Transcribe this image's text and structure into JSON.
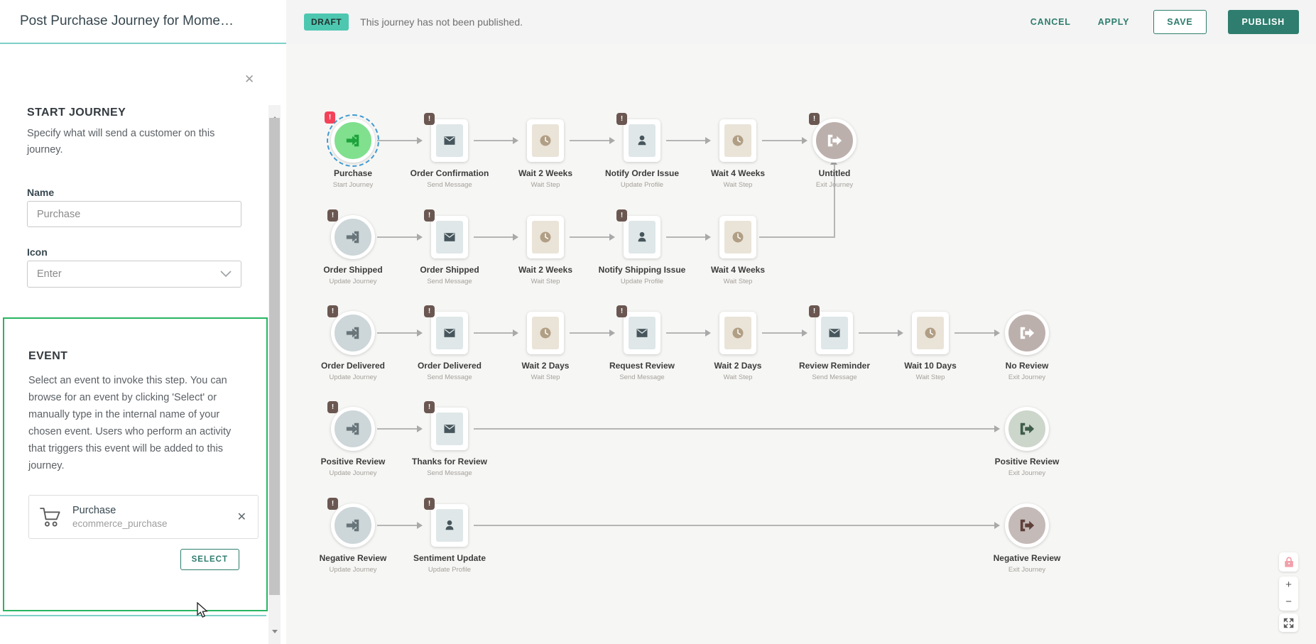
{
  "header": {
    "title": "Post Purchase Journey for Mome…",
    "status_badge": "DRAFT",
    "status_message": "This journey has not been published.",
    "actions": {
      "cancel": "CANCEL",
      "apply": "APPLY",
      "save": "SAVE",
      "publish": "PUBLISH"
    }
  },
  "sidebar": {
    "close_icon": "✕",
    "start_journey": {
      "heading": "START JOURNEY",
      "description": "Specify what will send a customer on this journey.",
      "name_label": "Name",
      "name_value": "Purchase",
      "icon_label": "Icon",
      "icon_value": "Enter"
    },
    "event": {
      "heading": "EVENT",
      "description": "Select an event to invoke this step. You can browse for an event by clicking 'Select' or manually type in the internal name of your chosen event. Users who perform an activity that triggers this event will be added to this journey.",
      "selected_event": {
        "name": "Purchase",
        "internal_name": "ecommerce_purchase",
        "icon": "shopping-cart",
        "remove_icon": "✕"
      },
      "select_button": "SELECT"
    }
  },
  "controls": {
    "lock_icon": "lock",
    "zoom_in": "+",
    "zoom_out": "−",
    "fullscreen_icon": "expand-arrows"
  },
  "colors": {
    "accent_teal": "#2e7d6e",
    "draft_badge": "#4ec7b1",
    "highlight_green": "#27b561",
    "start_node": "#80e08e",
    "start_icon": "#1ea33c",
    "selection_dash": "#3f9ad2",
    "journey_node": "#cdd6d8",
    "message_inner": "#dfe7e8",
    "wait_inner": "#eae3d8",
    "profile_inner": "#dfe7e8",
    "step_icon": "#47565c",
    "wait_icon": "#b19f85",
    "exit_neutral": "#bcb0ad",
    "exit_positive": "#ccd6cb",
    "exit_negative": "#c4bab7",
    "badge_dark": "#6b5751",
    "badge_red": "#f44259",
    "connector": "#b5b5b5"
  },
  "flow": {
    "rows": [
      {
        "nodes": [
          {
            "label": "Purchase",
            "sublabel": "Start Journey",
            "type": "start",
            "badge": "red",
            "selected": true,
            "col": 1
          },
          {
            "label": "Order Confirmation",
            "sublabel": "Send Message",
            "type": "message",
            "badge": "dark",
            "col": 2
          },
          {
            "label": "Wait 2 Weeks",
            "sublabel": "Wait Step",
            "type": "wait",
            "col": 3
          },
          {
            "label": "Notify Order Issue",
            "sublabel": "Update Profile",
            "type": "profile",
            "badge": "dark",
            "col": 4
          },
          {
            "label": "Wait 4 Weeks",
            "sublabel": "Wait Step",
            "type": "wait",
            "col": 5
          },
          {
            "label": "Untitled",
            "sublabel": "Exit Journey",
            "type": "exit-neutral",
            "badge": "dark",
            "col": 6
          }
        ]
      },
      {
        "nodes": [
          {
            "label": "Order Shipped",
            "sublabel": "Update Journey",
            "type": "journey",
            "badge": "dark",
            "col": 1
          },
          {
            "label": "Order Shipped",
            "sublabel": "Send Message",
            "type": "message",
            "badge": "dark",
            "col": 2
          },
          {
            "label": "Wait 2 Weeks",
            "sublabel": "Wait Step",
            "type": "wait",
            "col": 3
          },
          {
            "label": "Notify Shipping Issue",
            "sublabel": "Update Profile",
            "type": "profile",
            "badge": "dark",
            "col": 4
          },
          {
            "label": "Wait 4 Weeks",
            "sublabel": "Wait Step",
            "type": "wait",
            "col": 5
          }
        ]
      },
      {
        "nodes": [
          {
            "label": "Order Delivered",
            "sublabel": "Update Journey",
            "type": "journey",
            "badge": "dark",
            "col": 1
          },
          {
            "label": "Order Delivered",
            "sublabel": "Send Message",
            "type": "message",
            "badge": "dark",
            "col": 2
          },
          {
            "label": "Wait 2 Days",
            "sublabel": "Wait Step",
            "type": "wait",
            "col": 3
          },
          {
            "label": "Request Review",
            "sublabel": "Send Message",
            "type": "message",
            "badge": "dark",
            "col": 4
          },
          {
            "label": "Wait 2 Days",
            "sublabel": "Wait Step",
            "type": "wait",
            "col": 5
          },
          {
            "label": "Review Reminder",
            "sublabel": "Send Message",
            "type": "message",
            "badge": "dark",
            "col": 6
          },
          {
            "label": "Wait 10 Days",
            "sublabel": "Wait Step",
            "type": "wait",
            "col": 7
          },
          {
            "label": "No Review",
            "sublabel": "Exit Journey",
            "type": "exit-neutral",
            "col": 8
          }
        ]
      },
      {
        "nodes": [
          {
            "label": "Positive Review",
            "sublabel": "Update Journey",
            "type": "journey",
            "badge": "dark",
            "col": 1
          },
          {
            "label": "Thanks for Review",
            "sublabel": "Send Message",
            "type": "message",
            "badge": "dark",
            "col": 2
          },
          {
            "label": "Positive Review",
            "sublabel": "Exit Journey",
            "type": "exit-positive",
            "col": 8
          }
        ]
      },
      {
        "nodes": [
          {
            "label": "Negative Review",
            "sublabel": "Update Journey",
            "type": "journey",
            "badge": "dark",
            "col": 1
          },
          {
            "label": "Sentiment Update",
            "sublabel": "Update Profile",
            "type": "profile",
            "badge": "dark",
            "col": 2
          },
          {
            "label": "Negative Review",
            "sublabel": "Exit Journey",
            "type": "exit-negative",
            "col": 8
          }
        ]
      }
    ],
    "connections": [
      {
        "row": 1,
        "from": 1,
        "to": 2
      },
      {
        "row": 1,
        "from": 2,
        "to": 3
      },
      {
        "row": 1,
        "from": 3,
        "to": 4
      },
      {
        "row": 1,
        "from": 4,
        "to": 5
      },
      {
        "row": 1,
        "from": 5,
        "to": 6
      },
      {
        "row": 2,
        "from": 1,
        "to": 2
      },
      {
        "row": 2,
        "from": 2,
        "to": 3
      },
      {
        "row": 2,
        "from": 3,
        "to": 4
      },
      {
        "row": 2,
        "from": 4,
        "to": 5
      },
      {
        "elbow": true,
        "fromRow": 2,
        "fromCol": 5,
        "toRow": 1,
        "toCol": 6
      },
      {
        "row": 3,
        "from": 1,
        "to": 2
      },
      {
        "row": 3,
        "from": 2,
        "to": 3
      },
      {
        "row": 3,
        "from": 3,
        "to": 4
      },
      {
        "row": 3,
        "from": 4,
        "to": 5
      },
      {
        "row": 3,
        "from": 5,
        "to": 6
      },
      {
        "row": 3,
        "from": 6,
        "to": 7
      },
      {
        "row": 3,
        "from": 7,
        "to": 8
      },
      {
        "row": 4,
        "from": 1,
        "to": 2
      },
      {
        "row": 4,
        "from": 2,
        "to": 8
      },
      {
        "row": 5,
        "from": 1,
        "to": 2
      },
      {
        "row": 5,
        "from": 2,
        "to": 8
      }
    ]
  }
}
